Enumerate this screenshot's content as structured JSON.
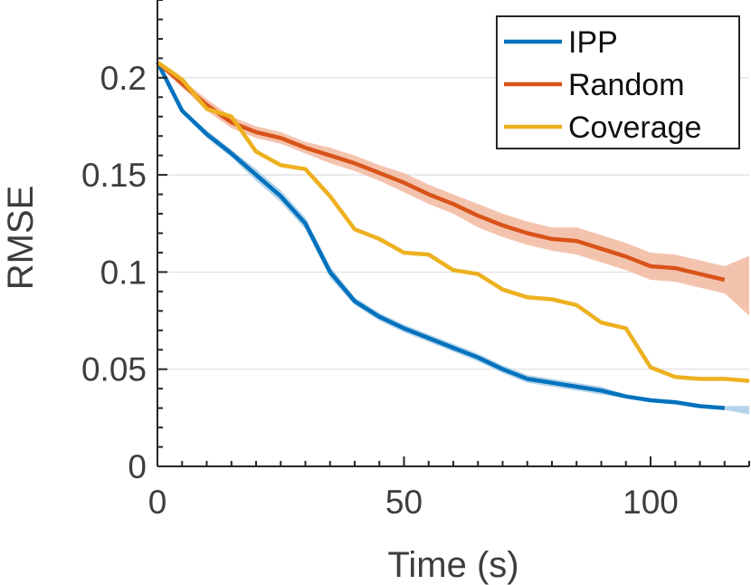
{
  "chart_data": {
    "type": "line",
    "xlabel": "Time (s)",
    "ylabel": "RMSE",
    "xlim": [
      0,
      120
    ],
    "ylim": [
      0,
      0.24
    ],
    "x_ticks": [
      0,
      50,
      100
    ],
    "x_tick_labels": [
      "0",
      "50",
      "100"
    ],
    "y_ticks": [
      0,
      0.05,
      0.1,
      0.15,
      0.2
    ],
    "y_tick_labels": [
      "0",
      "0.05",
      "0.1",
      "0.15",
      "0.2"
    ],
    "grid": "horizontal",
    "legend_position": "top-right",
    "series": [
      {
        "name": "IPP",
        "color": "#0072bd",
        "band_color": "#a8cbe6",
        "x": [
          0,
          5,
          10,
          15,
          20,
          25,
          30,
          35,
          40,
          45,
          50,
          55,
          60,
          65,
          70,
          75,
          80,
          85,
          90,
          95,
          100,
          105,
          110,
          115
        ],
        "values": [
          0.208,
          0.183,
          0.171,
          0.161,
          0.15,
          0.139,
          0.125,
          0.1,
          0.085,
          0.077,
          0.071,
          0.066,
          0.061,
          0.056,
          0.05,
          0.045,
          0.043,
          0.041,
          0.039,
          0.036,
          0.034,
          0.033,
          0.031,
          0.03
        ],
        "band": [
          0.001,
          0.001,
          0.002,
          0.002,
          0.003,
          0.003,
          0.003,
          0.003,
          0.002,
          0.002,
          0.002,
          0.002,
          0.002,
          0.002,
          0.002,
          0.002,
          0.002,
          0.002,
          0.002,
          0.001,
          0.001,
          0.001,
          0.001,
          0.001
        ],
        "band_extend_to": 120
      },
      {
        "name": "Random",
        "color": "#d95319",
        "band_color": "#f2b8a0",
        "x": [
          0,
          5,
          10,
          15,
          20,
          25,
          30,
          35,
          40,
          45,
          50,
          55,
          60,
          65,
          70,
          75,
          80,
          85,
          90,
          95,
          100,
          105,
          110,
          115
        ],
        "values": [
          0.208,
          0.197,
          0.186,
          0.177,
          0.172,
          0.169,
          0.164,
          0.16,
          0.156,
          0.151,
          0.146,
          0.14,
          0.135,
          0.129,
          0.124,
          0.12,
          0.117,
          0.116,
          0.112,
          0.108,
          0.103,
          0.102,
          0.099,
          0.096
        ],
        "band": [
          0.001,
          0.002,
          0.003,
          0.003,
          0.003,
          0.003,
          0.003,
          0.004,
          0.004,
          0.004,
          0.005,
          0.005,
          0.005,
          0.006,
          0.006,
          0.006,
          0.006,
          0.007,
          0.007,
          0.007,
          0.007,
          0.007,
          0.007,
          0.007
        ],
        "band_extend_to": 120
      },
      {
        "name": "Coverage",
        "color": "#edb120",
        "x": [
          0,
          5,
          10,
          15,
          20,
          25,
          30,
          35,
          40,
          45,
          50,
          55,
          60,
          65,
          70,
          75,
          80,
          85,
          90,
          95,
          100,
          105,
          110,
          115,
          120
        ],
        "values": [
          0.208,
          0.199,
          0.184,
          0.18,
          0.162,
          0.155,
          0.153,
          0.139,
          0.122,
          0.117,
          0.11,
          0.109,
          0.101,
          0.099,
          0.091,
          0.087,
          0.086,
          0.083,
          0.074,
          0.071,
          0.051,
          0.046,
          0.045,
          0.045,
          0.044
        ]
      }
    ]
  }
}
